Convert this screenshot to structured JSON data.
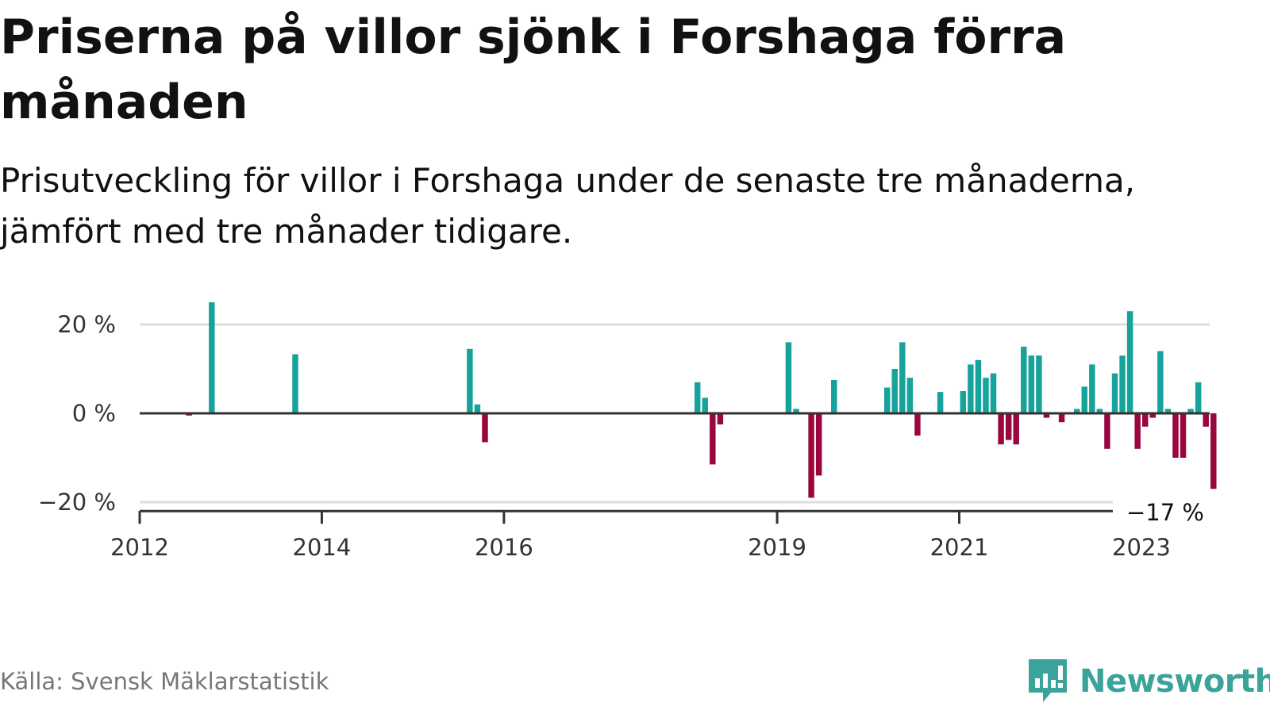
{
  "header": {
    "title": "Priserna på villor sjönk i Forshaga förra månaden",
    "subtitle": "Prisutveckling för villor i Forshaga under de senaste tre månaderna, jämfört med tre månader tidigare."
  },
  "footer": {
    "source": "Källa: Svensk Mäklarstatistik",
    "brand": "Newsworthy"
  },
  "colors": {
    "positive": "#16a39b",
    "negative": "#99073e",
    "brand": "#3aa39a"
  },
  "chart_data": {
    "type": "bar",
    "title": "",
    "xlabel": "",
    "ylabel": "",
    "ylim": [
      -22,
      25
    ],
    "yticks": [
      {
        "value": 20,
        "label": "20 %"
      },
      {
        "value": 0,
        "label": "0 %"
      },
      {
        "value": -20,
        "label": "−20 %"
      }
    ],
    "xticks": [
      {
        "date": "2012-01",
        "label": "2012"
      },
      {
        "date": "2014-01",
        "label": "2014"
      },
      {
        "date": "2016-01",
        "label": "2016"
      },
      {
        "date": "2019-01",
        "label": "2019"
      },
      {
        "date": "2021-01",
        "label": "2021"
      },
      {
        "date": "2023-01",
        "label": "2023"
      }
    ],
    "x_domain": [
      "2012-01",
      "2023-09"
    ],
    "grid": true,
    "annotation": {
      "date": "2023-01",
      "label": "−17 %"
    },
    "series": [
      {
        "values": [
          {
            "date": "2012-07",
            "value": -0.5
          },
          {
            "date": "2012-10",
            "value": 25
          },
          {
            "date": "2013-09",
            "value": 13.3
          },
          {
            "date": "2015-08",
            "value": 14.5
          },
          {
            "date": "2015-09",
            "value": 2
          },
          {
            "date": "2015-10",
            "value": -6.5
          },
          {
            "date": "2018-02",
            "value": 7
          },
          {
            "date": "2018-03",
            "value": 3.5
          },
          {
            "date": "2018-04",
            "value": -11.5
          },
          {
            "date": "2018-05",
            "value": -2.5
          },
          {
            "date": "2019-02",
            "value": 16
          },
          {
            "date": "2019-03",
            "value": 1
          },
          {
            "date": "2019-05",
            "value": -19
          },
          {
            "date": "2019-06",
            "value": -14
          },
          {
            "date": "2019-08",
            "value": 7.5
          },
          {
            "date": "2020-03",
            "value": 5.8
          },
          {
            "date": "2020-04",
            "value": 10
          },
          {
            "date": "2020-05",
            "value": 16
          },
          {
            "date": "2020-06",
            "value": 8
          },
          {
            "date": "2020-07",
            "value": -5
          },
          {
            "date": "2020-10",
            "value": 4.8
          },
          {
            "date": "2021-01",
            "value": 5
          },
          {
            "date": "2021-02",
            "value": 11
          },
          {
            "date": "2021-03",
            "value": 12
          },
          {
            "date": "2021-04",
            "value": 8
          },
          {
            "date": "2021-05",
            "value": 9
          },
          {
            "date": "2021-06",
            "value": -7
          },
          {
            "date": "2021-07",
            "value": -6
          },
          {
            "date": "2021-08",
            "value": -7
          },
          {
            "date": "2021-09",
            "value": 15
          },
          {
            "date": "2021-10",
            "value": 13
          },
          {
            "date": "2021-11",
            "value": 13
          },
          {
            "date": "2021-12",
            "value": -1
          },
          {
            "date": "2022-02",
            "value": -2
          },
          {
            "date": "2022-04",
            "value": 1
          },
          {
            "date": "2022-05",
            "value": 6
          },
          {
            "date": "2022-06",
            "value": 11
          },
          {
            "date": "2022-07",
            "value": 1
          },
          {
            "date": "2022-08",
            "value": -8
          },
          {
            "date": "2022-09",
            "value": 9
          },
          {
            "date": "2022-10",
            "value": 13
          },
          {
            "date": "2022-11",
            "value": 23
          },
          {
            "date": "2022-12",
            "value": -8
          },
          {
            "date": "2023-01",
            "value": -3
          },
          {
            "date": "2023-02",
            "value": -1
          },
          {
            "date": "2023-03",
            "value": 14
          },
          {
            "date": "2023-04",
            "value": 1
          },
          {
            "date": "2023-05",
            "value": -10
          },
          {
            "date": "2023-06",
            "value": -10
          },
          {
            "date": "2023-07",
            "value": 1
          },
          {
            "date": "2023-08",
            "value": 7
          },
          {
            "date": "2023-09",
            "value": -3
          },
          {
            "date": "2023-10",
            "value": -17
          }
        ]
      }
    ]
  }
}
